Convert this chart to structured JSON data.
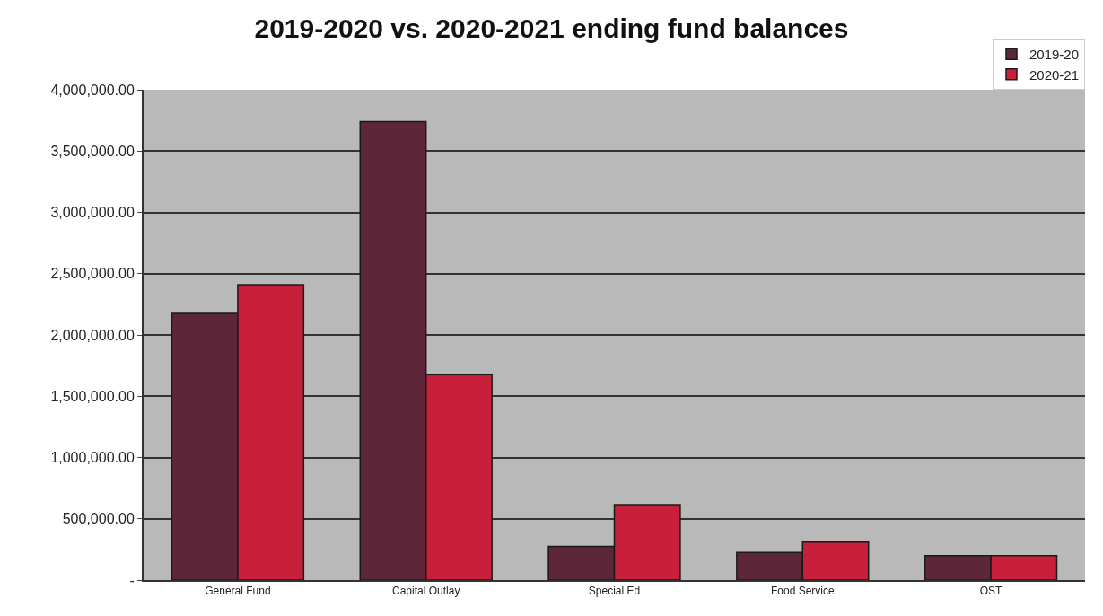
{
  "chart_data": {
    "type": "bar",
    "title": "2019-2020 vs. 2020-2021 ending fund balances",
    "categories": [
      "General Fund",
      "Capital Outlay",
      "Special Ed",
      "Food Service",
      "OST"
    ],
    "series": [
      {
        "name": "2019-20",
        "color": "#5e2639",
        "values": [
          2175000,
          3740000,
          275000,
          225000,
          200000
        ]
      },
      {
        "name": "2020-21",
        "color": "#c8203a",
        "values": [
          2410000,
          1675000,
          615000,
          310000,
          200000
        ]
      }
    ],
    "ylim": [
      0,
      4000000
    ],
    "yticks": [
      {
        "value": 0,
        "label": "-"
      },
      {
        "value": 500000,
        "label": "500,000.00"
      },
      {
        "value": 1000000,
        "label": "1,000,000.00"
      },
      {
        "value": 1500000,
        "label": "1,500,000.00"
      },
      {
        "value": 2000000,
        "label": "2,000,000.00"
      },
      {
        "value": 2500000,
        "label": "2,500,000.00"
      },
      {
        "value": 3000000,
        "label": "3,000,000.00"
      },
      {
        "value": 3500000,
        "label": "3,500,000.00"
      },
      {
        "value": 4000000,
        "label": "4,000,000.00"
      }
    ],
    "grid": "y",
    "legend": "top right"
  }
}
